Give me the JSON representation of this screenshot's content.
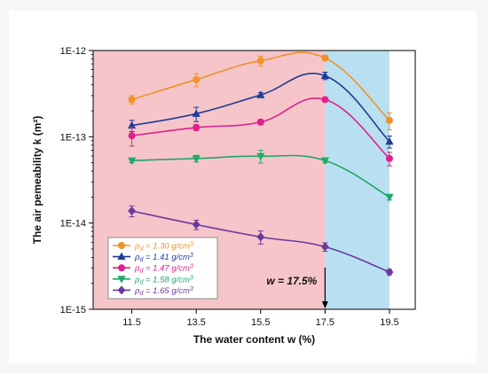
{
  "chart_data": {
    "type": "line",
    "y_scale": "log",
    "xlabel": "The water content w (%)",
    "ylabel": "The air pemeability k (m²)",
    "xlim": [
      10.3,
      20.3
    ],
    "ylim": [
      1e-15,
      1e-12
    ],
    "x_ticks": [
      11.5,
      13.5,
      15.5,
      17.5,
      19.5
    ],
    "y_ticks": [
      {
        "value": 1e-12,
        "label": "1E-12"
      },
      {
        "value": 1e-13,
        "label": "1E-13"
      },
      {
        "value": 1e-14,
        "label": "1E-14"
      },
      {
        "value": 1e-15,
        "label": "1E-15"
      }
    ],
    "regions": [
      {
        "x_from": 10.3,
        "x_to": 17.5,
        "color": "#f6c5c9"
      },
      {
        "x_from": 17.5,
        "x_to": 19.5,
        "color": "#b8e0f1"
      }
    ],
    "annotation": {
      "text": "w = 17.5%",
      "x": 17.5
    },
    "legend_placement": "bottom-left",
    "grid": false,
    "x": [
      11.5,
      13.5,
      15.5,
      17.5,
      19.5
    ],
    "series": [
      {
        "name": "ρd = 1.30 g/cm³",
        "legend_prefix": "ρ",
        "legend_sub": "d",
        "legend_suffix": " = 1.30 g/cm",
        "legend_sup": "3",
        "color": "#f0922b",
        "marker": "circle",
        "values": [
          2.7e-13,
          4.6e-13,
          7.6e-13,
          8.2e-13,
          1.55e-13
        ],
        "errors": [
          3e-14,
          8e-14,
          1e-13,
          6e-14,
          3.5e-14
        ]
      },
      {
        "name": "ρd = 1.41 g/cm³",
        "legend_prefix": "ρ",
        "legend_sub": "d",
        "legend_suffix": " = 1.41 g/cm",
        "legend_sup": "3",
        "color": "#1f3d95",
        "marker": "triangle-up",
        "values": [
          1.35e-13,
          1.85e-13,
          3.05e-13,
          5.1e-13,
          8.8e-14
        ],
        "errors": [
          2e-14,
          3.5e-14,
          2e-14,
          5e-14,
          1.4e-14
        ]
      },
      {
        "name": "ρd = 1.47 g/cm³",
        "legend_prefix": "ρ",
        "legend_sub": "d",
        "legend_suffix": " = 1.47 g/cm",
        "legend_sup": "3",
        "color": "#e0208d",
        "marker": "circle",
        "values": [
          1.03e-13,
          1.28e-13,
          1.48e-13,
          2.7e-13,
          5.6e-14
        ],
        "errors": [
          2.5e-14,
          1e-14,
          1e-14,
          1.5e-14,
          1e-14
        ]
      },
      {
        "name": "ρd = 1.58 g/cm³",
        "legend_prefix": "ρ",
        "legend_sub": "d",
        "legend_suffix": " = 1.58 g/cm",
        "legend_sup": "3",
        "color": "#1fa869",
        "marker": "triangle-down",
        "values": [
          5.3e-14,
          5.6e-14,
          5.95e-14,
          5.3e-14,
          2e-14
        ],
        "errors": [
          3e-15,
          5e-15,
          1e-14,
          3e-15,
          1.5e-15
        ]
      },
      {
        "name": "ρd = 1.65 g/cm³",
        "legend_prefix": "ρ",
        "legend_sub": "d",
        "legend_suffix": " = 1.65 g/cm",
        "legend_sup": "3",
        "color": "#6a3aa0",
        "marker": "diamond",
        "values": [
          1.38e-14,
          9.6e-15,
          6.9e-15,
          5.3e-15,
          2.7e-15
        ],
        "errors": [
          2e-15,
          1.2e-15,
          1.2e-15,
          6e-16,
          2e-16
        ]
      }
    ]
  }
}
